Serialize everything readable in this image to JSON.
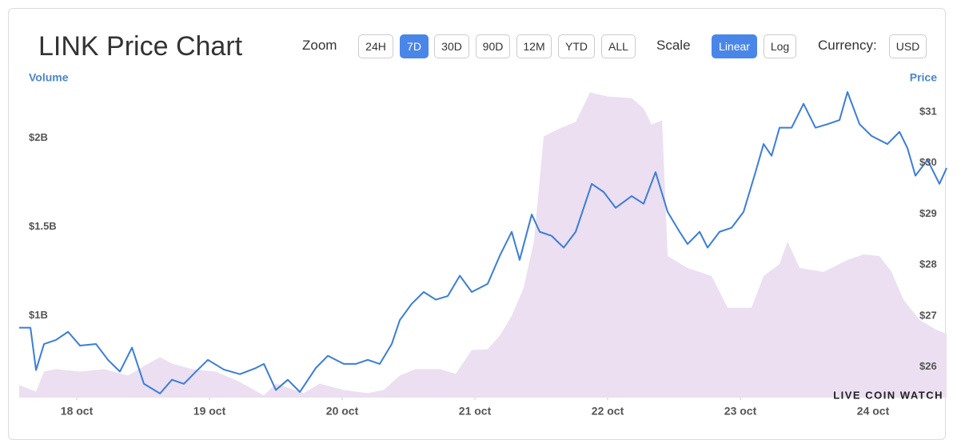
{
  "toolbar": {
    "zoom_label": "Zoom",
    "zoom_options": [
      "24H",
      "7D",
      "30D",
      "90D",
      "12M",
      "YTD",
      "ALL"
    ],
    "zoom_active": "7D",
    "scale_label": "Scale",
    "scale_options": [
      "Linear",
      "Log"
    ],
    "scale_active": "Linear",
    "currency_label": "Currency:",
    "currency": "USD"
  },
  "chart_data": {
    "type": "line",
    "title": "LINK Price Chart",
    "watermark": "LIVE COIN WATCH",
    "grid": false,
    "xlim": [
      17.566,
      24.554
    ],
    "xticks": [
      {
        "value": 18,
        "label": "18 oct"
      },
      {
        "value": 19,
        "label": "19 oct"
      },
      {
        "value": 20,
        "label": "20 oct"
      },
      {
        "value": 21,
        "label": "21 oct"
      },
      {
        "value": 22,
        "label": "22 oct"
      },
      {
        "value": 23,
        "label": "23 oct"
      },
      {
        "value": 24,
        "label": "24 oct"
      }
    ],
    "ylim": [
      0.54,
      2.29
    ],
    "yticks": [
      {
        "value": 1,
        "label": "$1B"
      },
      {
        "value": 1.5,
        "label": "$1.5B"
      },
      {
        "value": 2,
        "label": "$2B"
      }
    ],
    "y2lim": [
      25.4,
      31.5
    ],
    "y2ticks": [
      {
        "value": 26,
        "label": "$26"
      },
      {
        "value": 27,
        "label": "$27"
      },
      {
        "value": 28,
        "label": "$28"
      },
      {
        "value": 29,
        "label": "$29"
      },
      {
        "value": 30,
        "label": "$30"
      },
      {
        "value": 31,
        "label": "$31"
      }
    ],
    "series": [
      {
        "name": "Volume",
        "type": "area",
        "color": "#ebdff1",
        "axis": "y",
        "x": [
          17.566,
          17.693,
          17.753,
          17.843,
          18.024,
          18.205,
          18.386,
          18.506,
          18.627,
          18.717,
          18.867,
          19.048,
          19.229,
          19.41,
          19.5,
          19.59,
          19.711,
          19.831,
          20.012,
          20.193,
          20.313,
          20.434,
          20.554,
          20.735,
          20.855,
          20.976,
          21.096,
          21.187,
          21.277,
          21.367,
          21.446,
          21.518,
          21.639,
          21.759,
          21.867,
          22.0,
          22.181,
          22.271,
          22.331,
          22.41,
          22.452,
          22.602,
          22.783,
          22.904,
          23.084,
          23.175,
          23.295,
          23.355,
          23.446,
          23.627,
          23.807,
          23.928,
          24.048,
          24.139,
          24.229,
          24.349,
          24.47,
          24.554
        ],
        "values": [
          0.61,
          0.574,
          0.686,
          0.7,
          0.686,
          0.7,
          0.664,
          0.717,
          0.767,
          0.731,
          0.7,
          0.686,
          0.628,
          0.552,
          0.619,
          0.596,
          0.565,
          0.619,
          0.583,
          0.565,
          0.583,
          0.664,
          0.7,
          0.7,
          0.673,
          0.807,
          0.812,
          0.888,
          1.0,
          1.157,
          1.426,
          2.009,
          2.054,
          2.09,
          2.256,
          2.233,
          2.224,
          2.166,
          2.076,
          2.099,
          1.336,
          1.269,
          1.224,
          1.045,
          1.045,
          1.224,
          1.291,
          1.417,
          1.269,
          1.247,
          1.314,
          1.345,
          1.336,
          1.247,
          1.09,
          0.978,
          0.924,
          0.897
        ]
      },
      {
        "name": "Price",
        "type": "line",
        "color": "#3b7dd8",
        "axis": "y2",
        "x": [
          17.566,
          17.651,
          17.693,
          17.753,
          17.843,
          17.934,
          18.024,
          18.145,
          18.235,
          18.325,
          18.416,
          18.506,
          18.627,
          18.717,
          18.807,
          18.898,
          18.988,
          19.108,
          19.229,
          19.349,
          19.41,
          19.5,
          19.59,
          19.681,
          19.801,
          19.892,
          20.012,
          20.102,
          20.193,
          20.283,
          20.373,
          20.434,
          20.524,
          20.614,
          20.705,
          20.795,
          20.886,
          20.976,
          21.096,
          21.187,
          21.277,
          21.337,
          21.428,
          21.488,
          21.578,
          21.669,
          21.759,
          21.88,
          21.97,
          22.06,
          22.181,
          22.271,
          22.361,
          22.452,
          22.542,
          22.602,
          22.693,
          22.753,
          22.843,
          22.934,
          23.024,
          23.114,
          23.175,
          23.235,
          23.295,
          23.386,
          23.476,
          23.566,
          23.657,
          23.747,
          23.807,
          23.898,
          23.988,
          24.108,
          24.199,
          24.259,
          24.319,
          24.41,
          24.5,
          24.554
        ],
        "values": [
          26.77,
          26.77,
          25.94,
          26.45,
          26.53,
          26.69,
          26.42,
          26.45,
          26.14,
          25.91,
          26.38,
          25.67,
          25.48,
          25.75,
          25.67,
          25.91,
          26.14,
          25.95,
          25.86,
          25.98,
          26.06,
          25.55,
          25.75,
          25.51,
          25.98,
          26.22,
          26.06,
          26.06,
          26.14,
          26.06,
          26.45,
          26.92,
          27.24,
          27.47,
          27.32,
          27.39,
          27.79,
          27.47,
          27.63,
          28.18,
          28.65,
          28.1,
          28.99,
          28.65,
          28.57,
          28.34,
          28.65,
          29.59,
          29.43,
          29.12,
          29.35,
          29.2,
          29.82,
          29.04,
          28.65,
          28.41,
          28.65,
          28.34,
          28.65,
          28.73,
          29.04,
          29.82,
          30.37,
          30.14,
          30.69,
          30.69,
          31.16,
          30.69,
          30.76,
          30.84,
          31.39,
          30.76,
          30.53,
          30.37,
          30.61,
          30.29,
          29.75,
          30.06,
          29.59,
          29.9
        ]
      }
    ]
  }
}
